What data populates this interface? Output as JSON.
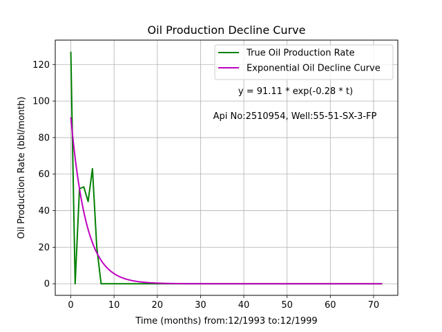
{
  "chart_data": {
    "type": "line",
    "title": "Oil Production Decline Curve",
    "xlabel": "Time (months) from:12/1993 to:12/1999",
    "ylabel": "Oil Production Rate (bbl/month)",
    "xlim": [
      -3.6,
      75.6
    ],
    "ylim": [
      -6.35,
      133.35
    ],
    "xticks": [
      0,
      10,
      20,
      30,
      40,
      50,
      60,
      70
    ],
    "yticks": [
      0,
      20,
      40,
      60,
      80,
      100,
      120
    ],
    "grid": true,
    "legend_position": "top-right",
    "series": [
      {
        "name": "True Oil Production Rate",
        "color": "#008000",
        "x": [
          0,
          1,
          2,
          3,
          4,
          5,
          6,
          7,
          8,
          9,
          10,
          11,
          12,
          13,
          14,
          15,
          16,
          17,
          18,
          19,
          20,
          21,
          22,
          23,
          24,
          25,
          26,
          27,
          28,
          29,
          30,
          31,
          32,
          33,
          34,
          35,
          36,
          37,
          38,
          39,
          40,
          41,
          42,
          43,
          44,
          45,
          46,
          47,
          48,
          49,
          50,
          51,
          52,
          53,
          54,
          55,
          56,
          57,
          58,
          59,
          60,
          61,
          62,
          63,
          64,
          65,
          66,
          67,
          68,
          69,
          70,
          71,
          72
        ],
        "values": [
          127,
          0,
          52,
          53,
          45,
          63,
          20,
          0,
          0,
          0,
          0,
          0,
          0,
          0,
          0,
          0,
          0,
          0,
          0,
          0,
          0,
          0,
          0,
          0,
          0,
          0,
          0,
          0,
          0,
          0,
          0,
          0,
          0,
          0,
          0,
          0,
          0,
          0,
          0,
          0,
          0,
          0,
          0,
          0,
          0,
          0,
          0,
          0,
          0,
          0,
          0,
          0,
          0,
          0,
          0,
          0,
          0,
          0,
          0,
          0,
          0,
          0,
          0,
          0,
          0,
          0,
          0,
          0,
          0,
          0,
          0,
          0,
          0
        ]
      },
      {
        "name": "Exponential Oil Decline Curve",
        "color": "#bf00bf",
        "equation": "y = 91.11 * exp(-0.28 * t)",
        "a": 91.11,
        "b": 0.28,
        "x_range": [
          0,
          72
        ]
      }
    ],
    "annotations": [
      "y = 91.11 * exp(-0.28 * t)",
      "Api No:2510954, Well:55-51-SX-3-FP"
    ]
  }
}
